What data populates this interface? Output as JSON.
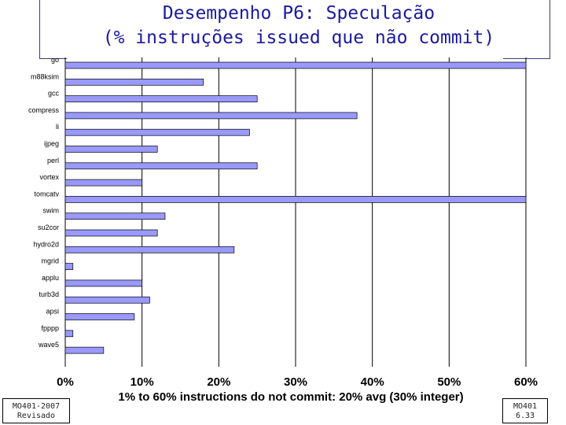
{
  "chart_data": {
    "type": "bar",
    "orientation": "horizontal",
    "title": "Desempenho P6: Speculação (% instruções issued que não commit)",
    "title_lines": [
      "Desempenho P6: Speculação",
      "(% instruções issued que não commit)"
    ],
    "xlabel": "1% to 60% instructions do not commit: 20% avg (30% integer)",
    "ylabel": "",
    "categories": [
      "go",
      "m88ksim",
      "gcc",
      "compress",
      "li",
      "ijpeg",
      "perl",
      "vortex",
      "tomcatv",
      "swim",
      "su2cor",
      "hydro2d",
      "mgrid",
      "applu",
      "turb3d",
      "apsi",
      "fpppp",
      "wave5"
    ],
    "values": [
      60,
      18,
      25,
      38,
      24,
      12,
      25,
      10,
      60,
      13,
      12,
      22,
      1,
      10,
      11,
      9,
      1,
      5
    ],
    "xlim": [
      0,
      60
    ],
    "xticks": [
      "0%",
      "10%",
      "20%",
      "30%",
      "40%",
      "50%",
      "60%"
    ],
    "grid": true,
    "bar_color": "#9999ff"
  },
  "footer": {
    "left_line1": "MO401-2007",
    "left_line2": "Revisado",
    "right_line1": "MO401",
    "right_line2": "6.33"
  }
}
